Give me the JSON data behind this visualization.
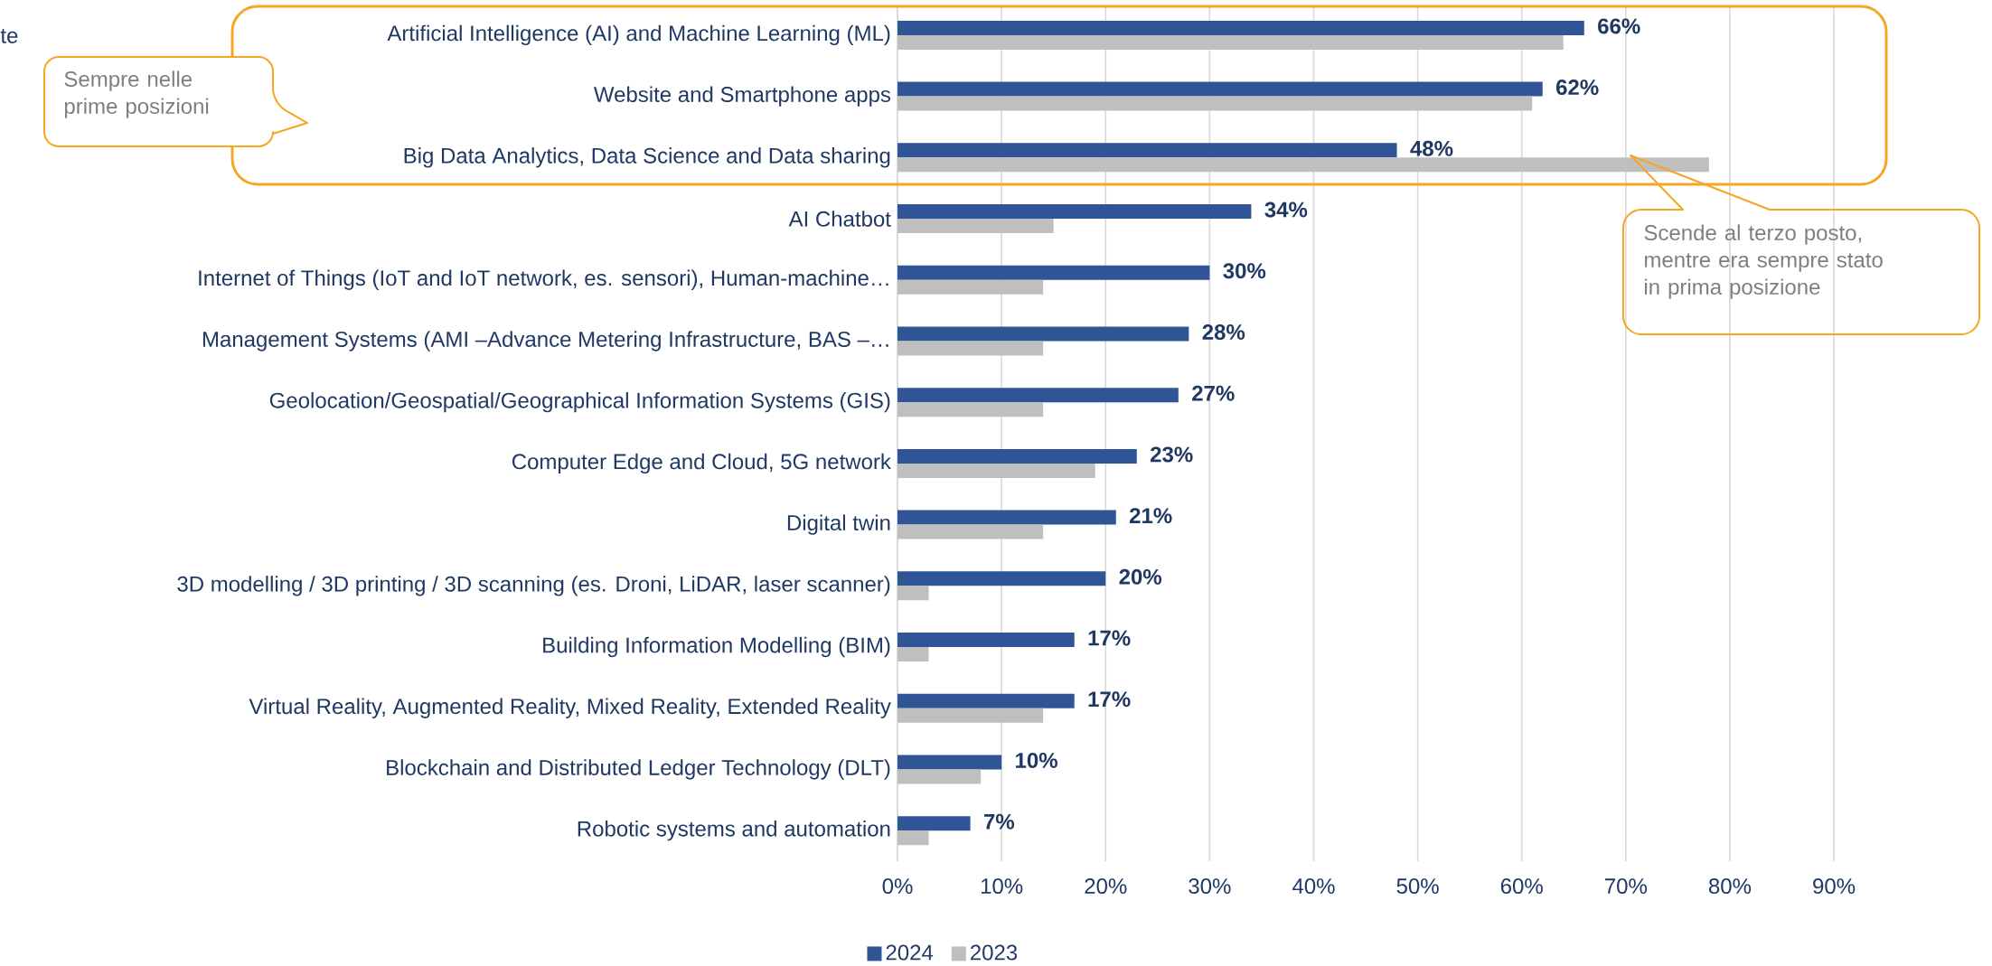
{
  "chart_data": {
    "type": "bar",
    "orientation": "horizontal",
    "categories": [
      "Artificial Intelligence (AI) and Machine Learning (ML)",
      "Website and Smartphone apps",
      "Big Data Analytics, Data Science and Data sharing",
      "AI Chatbot",
      "Internet of Things (IoT and IoT network, es. sensori), Human-machine…",
      "Management Systems (AMI –Advance Metering Infrastructure, BAS –…",
      "Geolocation/Geospatial/Geographical Information Systems (GIS)",
      "Computer Edge and Cloud, 5G network",
      "Digital twin",
      "3D modelling / 3D printing / 3D scanning (es. Droni, LiDAR, laser scanner)",
      "Building Information Modelling (BIM)",
      "Virtual Reality, Augmented Reality, Mixed Reality, Extended Reality",
      "Blockchain and Distributed Ledger Technology (DLT)",
      "Robotic systems and automation"
    ],
    "series": [
      {
        "name": "2024",
        "color": "#2f5597",
        "values": [
          66,
          62,
          48,
          34,
          30,
          28,
          27,
          23,
          21,
          20,
          17,
          17,
          10,
          7
        ],
        "value_labels": [
          "66%",
          "62%",
          "48%",
          "34%",
          "30%",
          "28%",
          "27%",
          "23%",
          "21%",
          "20%",
          "17%",
          "17%",
          "10%",
          "7%"
        ]
      },
      {
        "name": "2023",
        "color": "#bfbfbf",
        "values": [
          64,
          61,
          78,
          15,
          14,
          14,
          14,
          19,
          14,
          3,
          3,
          14,
          8,
          3
        ]
      }
    ],
    "xlim": [
      0,
      90
    ],
    "xticks": [
      {
        "value": 0,
        "label": "0%"
      },
      {
        "value": 10,
        "label": "10%"
      },
      {
        "value": 20,
        "label": "20%"
      },
      {
        "value": 30,
        "label": "30%"
      },
      {
        "value": 40,
        "label": "40%"
      },
      {
        "value": 50,
        "label": "50%"
      },
      {
        "value": 60,
        "label": "60%"
      },
      {
        "value": 70,
        "label": "70%"
      },
      {
        "value": 80,
        "label": "80%"
      },
      {
        "value": 90,
        "label": "90%"
      }
    ],
    "grid": "x",
    "legend": "bottom",
    "annotations": [
      "te",
      "Sempre nelle prime posizioni",
      "Scende al terzo posto, mentre era sempre stato in prima posizione"
    ]
  }
}
